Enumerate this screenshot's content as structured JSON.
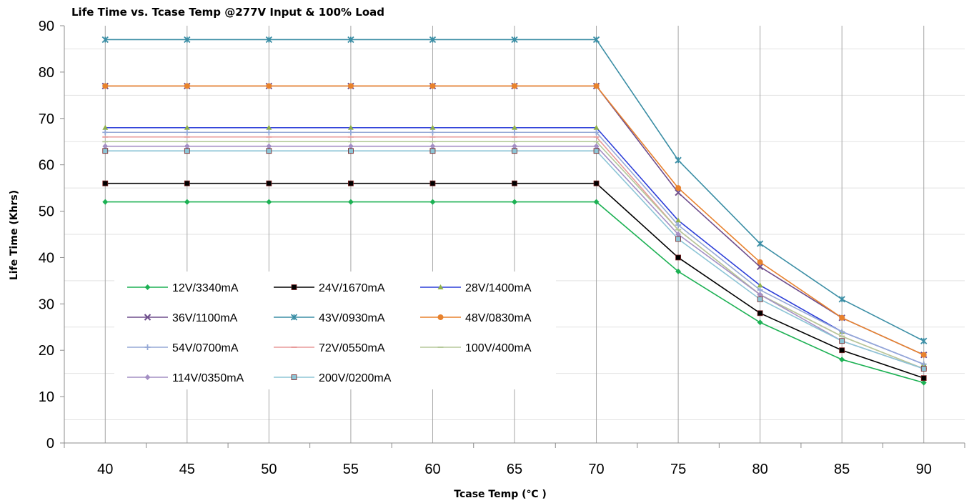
{
  "chart_data": {
    "type": "line",
    "title": "Life Time vs. Tcase Temp @277V Input & 100% Load",
    "xlabel": "Tcase Temp (℃ )",
    "ylabel": "Life Time (Khrs)",
    "x": [
      40,
      45,
      50,
      55,
      60,
      65,
      70,
      75,
      80,
      85,
      90
    ],
    "x_tick_labels": [
      "40",
      "45",
      "50",
      "55",
      "60",
      "65",
      "70",
      "75",
      "80",
      "85",
      "90"
    ],
    "ylim": [
      0,
      90
    ],
    "y_ticks": [
      0,
      10,
      20,
      30,
      40,
      50,
      60,
      70,
      80,
      90
    ],
    "y_tick_labels": [
      "0",
      "10",
      "20",
      "30",
      "40",
      "50",
      "60",
      "70",
      "80",
      "90"
    ],
    "grid": "vertical lines and minor horizontal lines",
    "legend_position": "inside, lower-left",
    "series": [
      {
        "name": "12V/3340mA",
        "color": "#1db154",
        "marker": "diamond",
        "values": [
          52,
          52,
          52,
          52,
          52,
          52,
          52,
          37,
          26,
          18,
          13
        ]
      },
      {
        "name": "24V/1670mA",
        "color": "#000000",
        "marker": "square",
        "values": [
          56,
          56,
          56,
          56,
          56,
          56,
          56,
          40,
          28,
          20,
          14
        ]
      },
      {
        "name": "28V/1400mA",
        "color": "#2c3ed8",
        "marker": "triangle",
        "values": [
          68,
          68,
          68,
          68,
          68,
          68,
          68,
          48,
          34,
          24,
          17
        ]
      },
      {
        "name": "36V/1100mA",
        "color": "#6e4d8c",
        "marker": "x",
        "values": [
          77,
          77,
          77,
          77,
          77,
          77,
          77,
          54,
          38,
          27,
          19
        ]
      },
      {
        "name": "43V/0930mA",
        "color": "#3b8ea5",
        "marker": "star",
        "values": [
          87,
          87,
          87,
          87,
          87,
          87,
          87,
          61,
          43,
          31,
          22
        ]
      },
      {
        "name": "48V/0830mA",
        "color": "#e8822d",
        "marker": "circle",
        "values": [
          77,
          77,
          77,
          77,
          77,
          77,
          77,
          55,
          39,
          27,
          19
        ]
      },
      {
        "name": "54V/0700mA",
        "color": "#95a8d6",
        "marker": "plus",
        "values": [
          67,
          67,
          67,
          67,
          67,
          67,
          67,
          47,
          33,
          24,
          17
        ]
      },
      {
        "name": "72V/0550mA",
        "color": "#e89a9a",
        "marker": "dash",
        "values": [
          66,
          66,
          66,
          66,
          66,
          66,
          66,
          46,
          32,
          23,
          16
        ]
      },
      {
        "name": "100V/400mA",
        "color": "#b5c99a",
        "marker": "dash",
        "values": [
          65,
          65,
          65,
          65,
          65,
          65,
          65,
          46,
          32,
          23,
          16
        ]
      },
      {
        "name": "114V/0350mA",
        "color": "#a48fc4",
        "marker": "diamond",
        "values": [
          64,
          64,
          64,
          64,
          64,
          64,
          64,
          45,
          32,
          22,
          16
        ]
      },
      {
        "name": "200V/0200mA",
        "color": "#8dc5d6",
        "marker": "square",
        "values": [
          63,
          63,
          63,
          63,
          63,
          63,
          63,
          44,
          31,
          22,
          16
        ]
      }
    ]
  }
}
